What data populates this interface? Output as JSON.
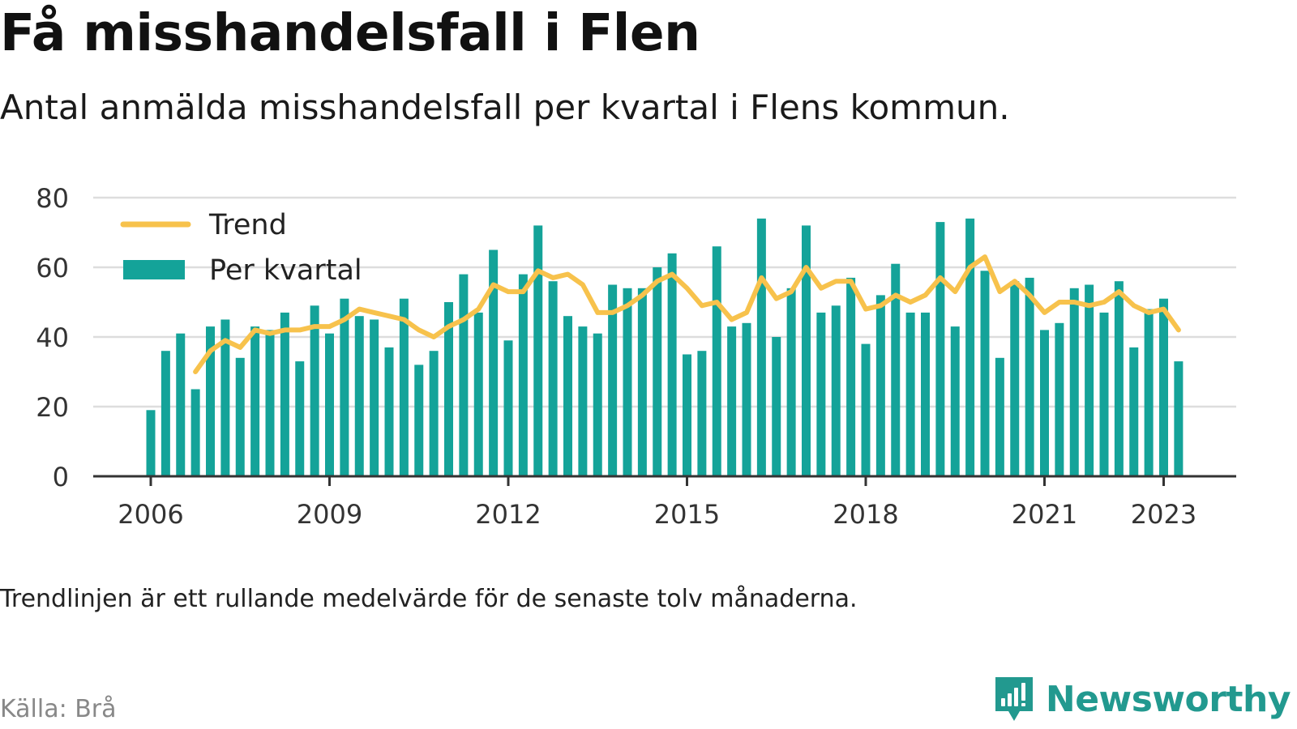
{
  "title": "Få misshandelsfall i Flen",
  "subtitle": "Antal anmälda misshandelsfall per kvartal i Flens kommun.",
  "note": "Trendlinjen är ett rullande medelvärde för de senaste tolv månaderna.",
  "source": "Källa: Brå",
  "brand": {
    "name": "Newsworthy",
    "icon": "newsworthy-logo-icon",
    "color": "#22998f"
  },
  "colors": {
    "bars": "#14a399",
    "trend": "#f7c24c",
    "grid": "#dddddd",
    "axis": "#333333"
  },
  "chart_data": {
    "type": "bar",
    "ylim": [
      0,
      80
    ],
    "y_ticks": [
      "0",
      "20",
      "40",
      "60",
      "80"
    ],
    "x_ticks": [
      "2006",
      "2009",
      "2012",
      "2015",
      "2018",
      "2021",
      "2023"
    ],
    "legend_position": "top-left",
    "grid": true,
    "x_start": "2006 Q1",
    "series": [
      {
        "name": "Per kvartal",
        "type": "bar",
        "values": [
          19,
          36,
          41,
          25,
          43,
          45,
          34,
          43,
          42,
          47,
          33,
          49,
          41,
          51,
          46,
          45,
          37,
          51,
          32,
          36,
          50,
          58,
          47,
          65,
          39,
          58,
          72,
          56,
          46,
          43,
          41,
          55,
          54,
          54,
          60,
          64,
          35,
          36,
          66,
          43,
          44,
          74,
          40,
          54,
          72,
          47,
          49,
          57,
          38,
          52,
          61,
          47,
          47,
          73,
          43,
          74,
          59,
          34,
          56,
          57,
          42,
          44,
          54,
          55,
          47,
          56,
          37,
          48,
          51,
          33
        ]
      },
      {
        "name": "Trend",
        "type": "line",
        "values": [
          null,
          null,
          null,
          30,
          36,
          39,
          37,
          42,
          41,
          42,
          42,
          43,
          43,
          45,
          48,
          47,
          46,
          45,
          42,
          40,
          43,
          45,
          48,
          55,
          53,
          53,
          59,
          57,
          58,
          55,
          47,
          47,
          49,
          52,
          56,
          58,
          54,
          49,
          50,
          45,
          47,
          57,
          51,
          53,
          60,
          54,
          56,
          56,
          48,
          49,
          52,
          50,
          52,
          57,
          53,
          60,
          63,
          53,
          56,
          52,
          47,
          50,
          50,
          49,
          50,
          53,
          49,
          47,
          48,
          42
        ]
      }
    ]
  }
}
